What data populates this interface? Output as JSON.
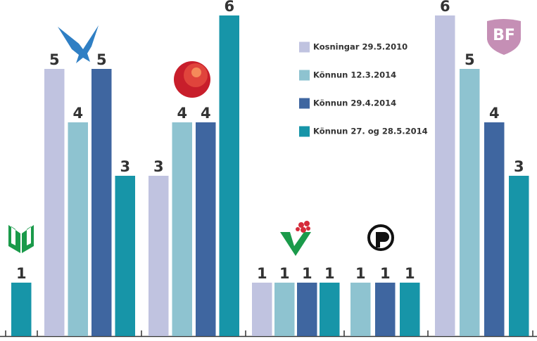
{
  "chart_data": {
    "type": "bar",
    "categories": [
      null,
      null,
      null,
      null,
      null,
      null
    ],
    "series": [
      {
        "name": "Kosningar 29.5.2010",
        "color": "#c0c3e0",
        "values": [
          null,
          5,
          3,
          1,
          null,
          6
        ]
      },
      {
        "name": "Könnun 12.3.2014",
        "color": "#8ec3d0",
        "values": [
          null,
          4,
          4,
          1,
          1,
          5
        ]
      },
      {
        "name": "Könnun 29.4.2014",
        "color": "#3f66a0",
        "values": [
          null,
          5,
          4,
          1,
          1,
          4
        ]
      },
      {
        "name": "Könnun 27. og 28.5.2014",
        "color": "#1795a8",
        "values": [
          1,
          3,
          6,
          1,
          1,
          3
        ]
      }
    ],
    "ylim": [
      0,
      6
    ],
    "annotation": "BF"
  }
}
